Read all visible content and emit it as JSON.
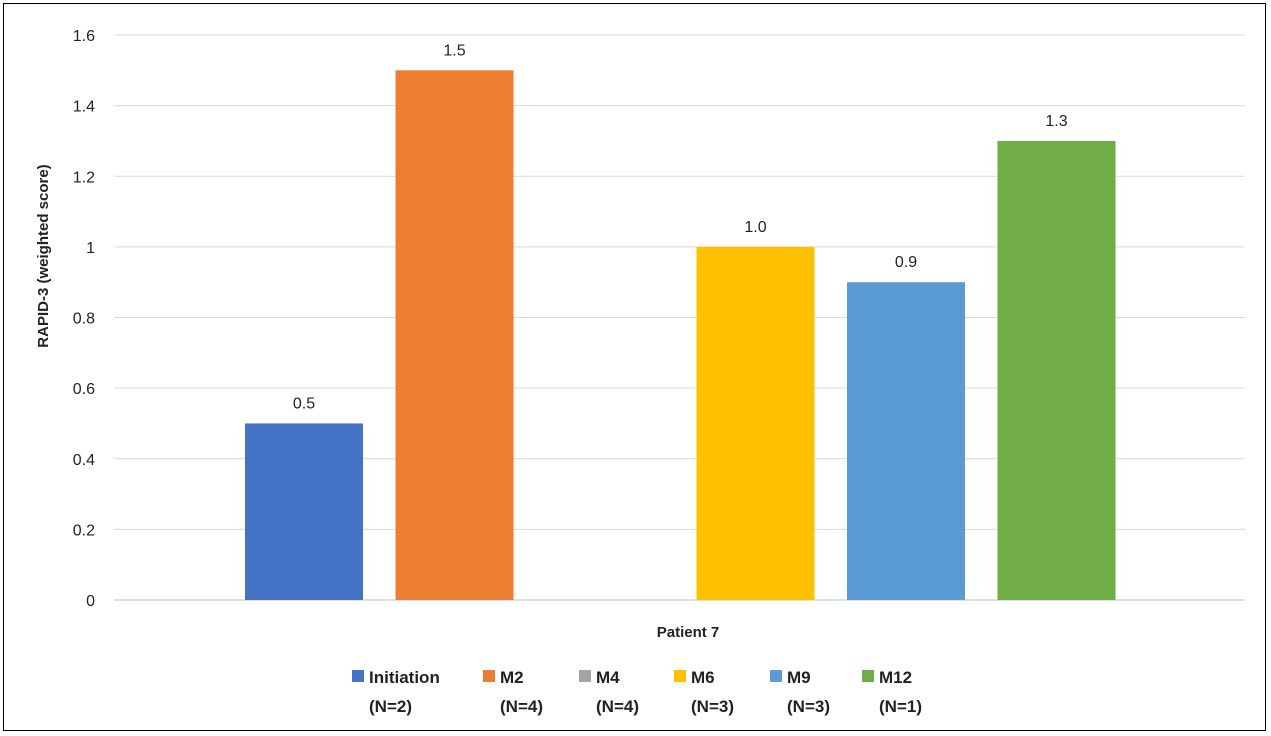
{
  "chart_data": {
    "type": "bar",
    "categories": [
      "Patient 7"
    ],
    "xlabel": "Patient 7",
    "ylabel": "RAPID-3 (weighted score)",
    "ylim": [
      0,
      1.6
    ],
    "yticks": [
      "0",
      "0.2",
      "0.4",
      "0.6",
      "0.8",
      "1",
      "1.2",
      "1.4",
      "1.6"
    ],
    "grid": true,
    "legend_position": "bottom",
    "series": [
      {
        "name": "Initiation",
        "sub": "(N=2)",
        "value": 0.5,
        "label": "0.5",
        "color": "#4472C4"
      },
      {
        "name": "M2",
        "sub": "(N=4)",
        "value": 1.5,
        "label": "1.5",
        "color": "#ED7D31"
      },
      {
        "name": "M4",
        "sub": "(N=4)",
        "value": null,
        "label": "",
        "color": "#A5A5A5"
      },
      {
        "name": "M6",
        "sub": "(N=3)",
        "value": 1.0,
        "label": "1.0",
        "color": "#FFC000"
      },
      {
        "name": "M9",
        "sub": "(N=3)",
        "value": 0.9,
        "label": "0.9",
        "color": "#5B9BD5"
      },
      {
        "name": "M12",
        "sub": "(N=1)",
        "value": 1.3,
        "label": "1.3",
        "color": "#70AD47"
      }
    ]
  }
}
